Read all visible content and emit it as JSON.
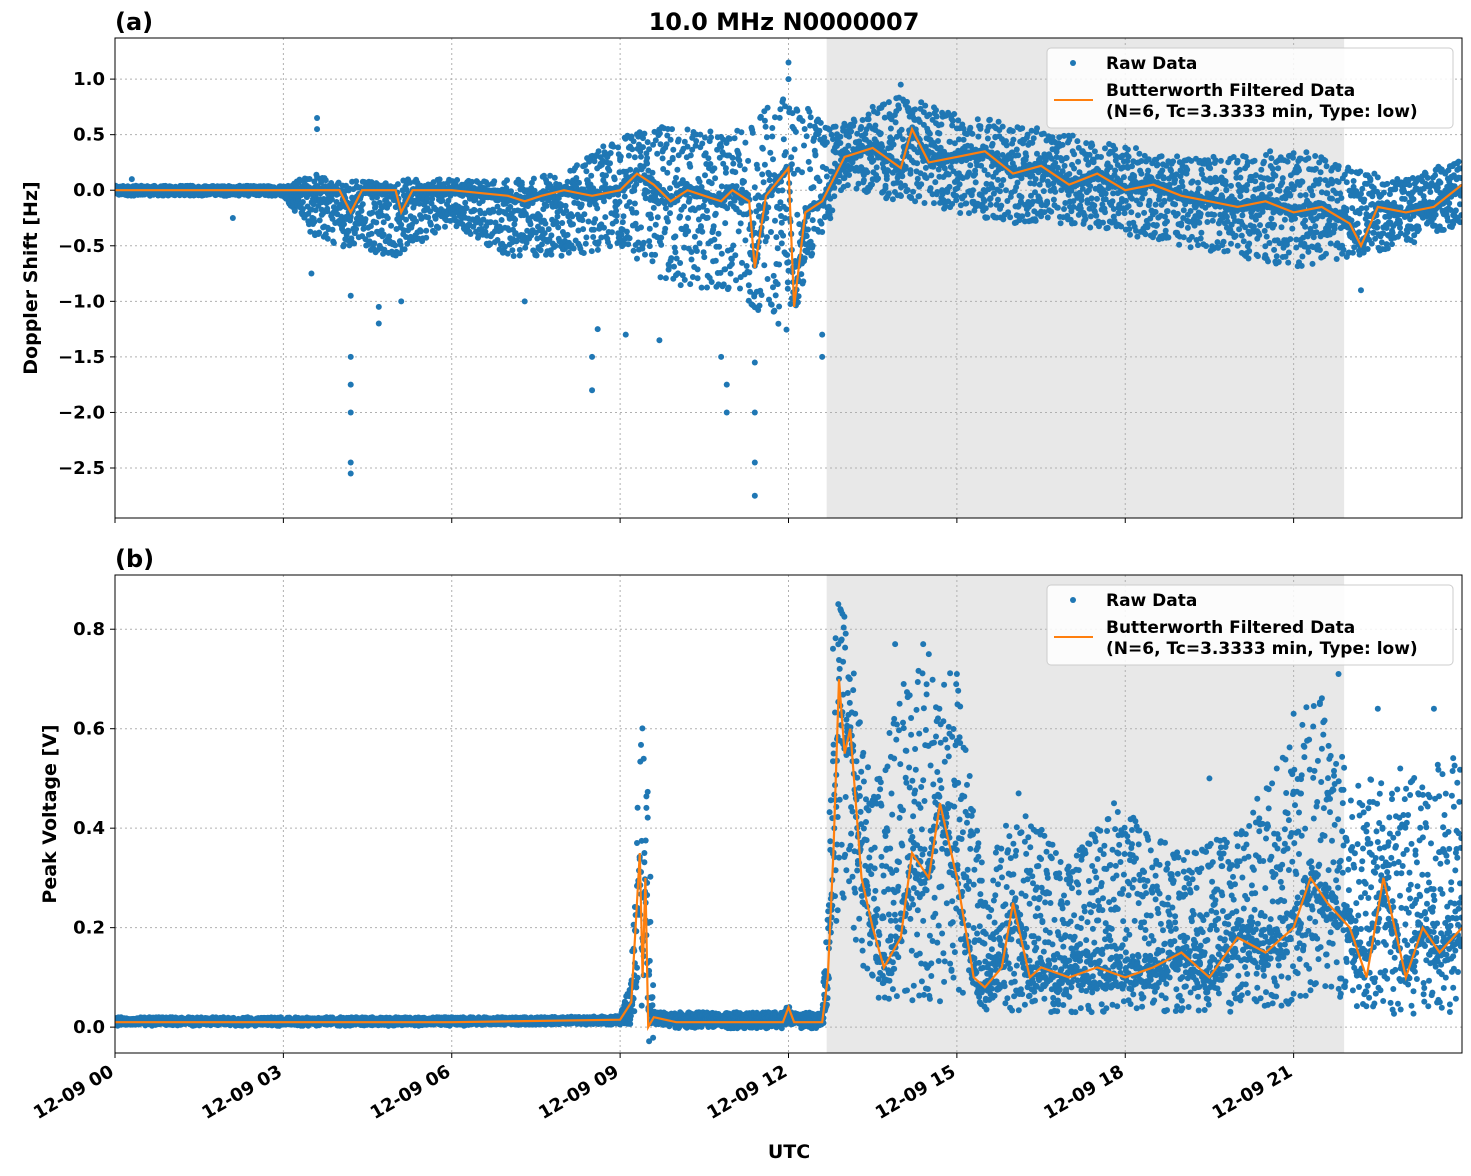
{
  "title": "10.0 MHz N0000007",
  "xlabel": "UTC",
  "colors": {
    "raw": "#1f77b4",
    "filtered": "#ff7f0e",
    "shade": "#e8e8e8",
    "grid": "#b0b0b0"
  },
  "legend": {
    "raw": "Raw Data",
    "filtered_line1": "Butterworth Filtered Data",
    "filtered_line2": "(N=6, Tc=3.3333 min, Type: low)",
    "placement": "upper-right"
  },
  "x_ticks": [
    "12-09 00",
    "12-09 03",
    "12-09 06",
    "12-09 09",
    "12-09 12",
    "12-09 15",
    "12-09 18",
    "12-09 21"
  ],
  "chart_data": [
    {
      "type": "scatter+line",
      "panel_label": "(a)",
      "ylabel": "Doppler Shift [Hz]",
      "x_unit": "hours UTC on 12-09",
      "xlim": [
        0,
        24
      ],
      "ylim": [
        -2.95,
        1.37
      ],
      "y_ticks": [
        "1.0",
        "0.5",
        "0.0",
        "−0.5",
        "−1.0",
        "−1.5",
        "−2.0",
        "−2.5"
      ],
      "y_tick_values": [
        1.0,
        0.5,
        0.0,
        -0.5,
        -1.0,
        -1.5,
        -2.0,
        -2.5
      ],
      "grid": true,
      "shaded_interval": [
        12.68,
        21.9
      ],
      "filtered": {
        "x": [
          0,
          1,
          2,
          3,
          3.5,
          4,
          4.2,
          4.4,
          5,
          5.1,
          5.3,
          6,
          7,
          7.3,
          7.6,
          8,
          8.5,
          9,
          9.3,
          9.6,
          9.9,
          10.2,
          10.5,
          10.8,
          11,
          11.3,
          11.4,
          11.6,
          12,
          12.1,
          12.3,
          12.6,
          13,
          13.5,
          14,
          14.2,
          14.5,
          15,
          15.5,
          16,
          16.5,
          17,
          17.5,
          18,
          18.5,
          19,
          19.5,
          20,
          20.5,
          21,
          21.5,
          22,
          22.2,
          22.5,
          23,
          23.5,
          24
        ],
        "y": [
          0,
          0,
          0,
          0,
          0,
          0,
          -0.2,
          0,
          0,
          -0.2,
          0,
          0,
          -0.05,
          -0.1,
          -0.05,
          0,
          -0.05,
          0,
          0.15,
          0.05,
          -0.1,
          0.0,
          -0.05,
          -0.1,
          0.0,
          -0.1,
          -0.7,
          -0.05,
          0.2,
          -1.05,
          -0.2,
          -0.1,
          0.3,
          0.38,
          0.2,
          0.55,
          0.25,
          0.3,
          0.35,
          0.15,
          0.22,
          0.05,
          0.15,
          0.0,
          0.05,
          -0.05,
          -0.1,
          -0.15,
          -0.1,
          -0.2,
          -0.15,
          -0.3,
          -0.5,
          -0.15,
          -0.2,
          -0.15,
          0.05
        ]
      },
      "raw_envelope": {
        "x": [
          0,
          3,
          3.5,
          4,
          5,
          6,
          7,
          8,
          9,
          10,
          11,
          12,
          12.7,
          13,
          14,
          15,
          16,
          17,
          18,
          19,
          20,
          21,
          22,
          23,
          24
        ],
        "low": [
          -0.05,
          -0.05,
          -0.4,
          -0.5,
          -0.6,
          -0.3,
          -0.6,
          -0.6,
          -0.5,
          -0.9,
          -0.9,
          -1.3,
          -0.3,
          0.0,
          -0.1,
          -0.2,
          -0.3,
          -0.3,
          -0.4,
          -0.5,
          -0.6,
          -0.7,
          -0.6,
          -0.5,
          -0.3
        ],
        "high": [
          0.04,
          0.04,
          0.15,
          0.1,
          0.1,
          0.1,
          0.1,
          0.15,
          0.5,
          0.6,
          0.5,
          0.9,
          0.6,
          0.6,
          0.85,
          0.7,
          0.6,
          0.5,
          0.4,
          0.3,
          0.3,
          0.4,
          0.2,
          0.1,
          0.3
        ]
      },
      "raw_outliers": [
        [
          0.3,
          0.1
        ],
        [
          2.1,
          -0.25
        ],
        [
          3.6,
          0.65
        ],
        [
          3.6,
          0.55
        ],
        [
          3.5,
          -0.75
        ],
        [
          4.2,
          -2.55
        ],
        [
          4.2,
          -2.45
        ],
        [
          4.2,
          -2.0
        ],
        [
          4.2,
          -1.75
        ],
        [
          4.2,
          -1.5
        ],
        [
          4.2,
          -0.95
        ],
        [
          4.7,
          -1.2
        ],
        [
          4.7,
          -1.05
        ],
        [
          5.1,
          -1.0
        ],
        [
          7.3,
          -1.0
        ],
        [
          8.5,
          -1.8
        ],
        [
          8.5,
          -1.5
        ],
        [
          8.6,
          -1.25
        ],
        [
          9.1,
          -1.3
        ],
        [
          9.7,
          -1.35
        ],
        [
          10.8,
          -1.5
        ],
        [
          10.9,
          -2.0
        ],
        [
          10.9,
          -1.75
        ],
        [
          11.4,
          -2.75
        ],
        [
          11.4,
          -2.45
        ],
        [
          11.4,
          -2.0
        ],
        [
          11.4,
          -1.55
        ],
        [
          12.0,
          1.15
        ],
        [
          12.0,
          1.0
        ],
        [
          12.6,
          -1.5
        ],
        [
          12.6,
          -1.3
        ],
        [
          14.0,
          0.95
        ],
        [
          13.5,
          0.75
        ],
        [
          22.2,
          -0.9
        ]
      ]
    },
    {
      "type": "scatter+line",
      "panel_label": "(b)",
      "ylabel": "Peak Voltage [V]",
      "x_unit": "hours UTC on 12-09",
      "xlim": [
        0,
        24
      ],
      "ylim": [
        -0.052,
        0.909
      ],
      "y_ticks": [
        "0.0",
        "0.2",
        "0.4",
        "0.6",
        "0.8"
      ],
      "y_tick_values": [
        0.0,
        0.2,
        0.4,
        0.6,
        0.8
      ],
      "grid": true,
      "shaded_interval": [
        12.68,
        21.9
      ],
      "filtered": {
        "x": [
          0,
          3,
          6,
          9,
          9.2,
          9.35,
          9.4,
          9.45,
          9.5,
          9.6,
          10,
          11,
          11.9,
          12,
          12.1,
          12.6,
          12.7,
          12.8,
          12.9,
          13,
          13.1,
          13.3,
          13.5,
          13.7,
          14,
          14.2,
          14.5,
          14.7,
          15,
          15.3,
          15.5,
          15.8,
          16,
          16.3,
          16.5,
          17,
          17.5,
          18,
          18.5,
          19,
          19.5,
          20,
          20.5,
          21,
          21.3,
          21.6,
          22,
          22.3,
          22.6,
          23,
          23.3,
          23.6,
          24
        ],
        "y": [
          0.01,
          0.01,
          0.01,
          0.015,
          0.05,
          0.35,
          0.1,
          0.3,
          0.0,
          0.02,
          0.01,
          0.01,
          0.01,
          0.04,
          0.01,
          0.01,
          0.1,
          0.35,
          0.7,
          0.55,
          0.6,
          0.3,
          0.2,
          0.12,
          0.18,
          0.35,
          0.3,
          0.45,
          0.3,
          0.1,
          0.08,
          0.12,
          0.25,
          0.1,
          0.12,
          0.1,
          0.12,
          0.1,
          0.12,
          0.15,
          0.1,
          0.18,
          0.15,
          0.2,
          0.3,
          0.25,
          0.2,
          0.1,
          0.3,
          0.1,
          0.2,
          0.15,
          0.2
        ]
      },
      "raw_envelope": {
        "x": [
          0,
          9,
          9.2,
          9.35,
          9.5,
          9.6,
          12.6,
          12.7,
          12.8,
          13,
          13.3,
          13.6,
          14,
          14.5,
          15,
          15.5,
          16,
          17,
          18,
          19,
          20,
          21,
          21.5,
          22,
          22.5,
          23,
          24
        ],
        "low": [
          0.005,
          0.005,
          0.01,
          0.05,
          0.005,
          0.005,
          0.005,
          0.05,
          0.2,
          0.25,
          0.1,
          0.05,
          0.04,
          0.05,
          0.05,
          0.03,
          0.03,
          0.03,
          0.03,
          0.03,
          0.03,
          0.04,
          0.08,
          0.05,
          0.02,
          0.02,
          0.02
        ],
        "high": [
          0.02,
          0.02,
          0.1,
          0.65,
          0.5,
          0.03,
          0.03,
          0.3,
          0.86,
          0.86,
          0.6,
          0.5,
          0.7,
          0.75,
          0.7,
          0.3,
          0.45,
          0.35,
          0.45,
          0.35,
          0.4,
          0.6,
          0.7,
          0.5,
          0.5,
          0.5,
          0.55
        ]
      },
      "raw_outliers": [
        [
          13.9,
          0.77
        ],
        [
          14.4,
          0.77
        ],
        [
          14.5,
          0.75
        ],
        [
          15.0,
          0.71
        ],
        [
          16.1,
          0.47
        ],
        [
          17.8,
          0.45
        ],
        [
          19.5,
          0.5
        ],
        [
          20.7,
          0.52
        ],
        [
          21.0,
          0.63
        ],
        [
          21.8,
          0.71
        ],
        [
          22.5,
          0.64
        ],
        [
          22.9,
          0.52
        ],
        [
          23.5,
          0.64
        ]
      ]
    }
  ]
}
